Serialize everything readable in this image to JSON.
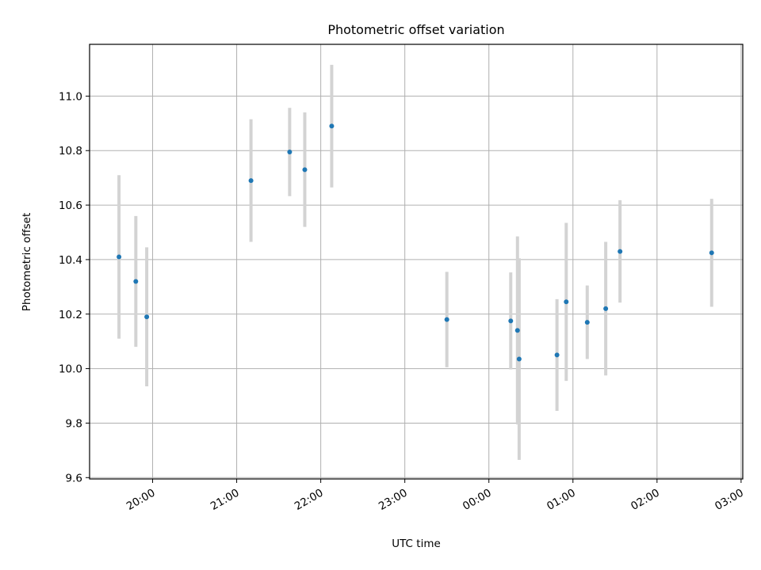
{
  "chart_data": {
    "type": "scatter",
    "title": "Photometric offset variation",
    "xlabel": "UTC time",
    "ylabel": "Photometric offset",
    "x_unit": "hours since 00:00 UTC",
    "xlim": [
      -4.75,
      3.02
    ],
    "ylim": [
      9.595,
      11.19
    ],
    "grid": true,
    "x_ticks": [
      {
        "value": -4,
        "label": "20:00"
      },
      {
        "value": -3,
        "label": "21:00"
      },
      {
        "value": -2,
        "label": "22:00"
      },
      {
        "value": -1,
        "label": "23:00"
      },
      {
        "value": 0,
        "label": "00:00"
      },
      {
        "value": 1,
        "label": "01:00"
      },
      {
        "value": 2,
        "label": "02:00"
      },
      {
        "value": 3,
        "label": "03:00"
      }
    ],
    "y_ticks": [
      {
        "value": 9.6,
        "label": "9.6"
      },
      {
        "value": 9.8,
        "label": "9.8"
      },
      {
        "value": 10.0,
        "label": "10.0"
      },
      {
        "value": 10.2,
        "label": "10.2"
      },
      {
        "value": 10.4,
        "label": "10.4"
      },
      {
        "value": 10.6,
        "label": "10.6"
      },
      {
        "value": 10.8,
        "label": "10.8"
      },
      {
        "value": 11.0,
        "label": "11.0"
      }
    ],
    "series": [
      {
        "marker_color": "#1f77b4",
        "errorbar_color": "#d3d3d3",
        "points": [
          {
            "x": -4.4,
            "y": 10.41,
            "yerr": 0.3
          },
          {
            "x": -4.2,
            "y": 10.32,
            "yerr": 0.24
          },
          {
            "x": -4.07,
            "y": 10.19,
            "yerr": 0.255
          },
          {
            "x": -2.83,
            "y": 10.69,
            "yerr": 0.225
          },
          {
            "x": -2.37,
            "y": 10.795,
            "yerr": 0.162
          },
          {
            "x": -2.19,
            "y": 10.73,
            "yerr": 0.21
          },
          {
            "x": -1.87,
            "y": 10.89,
            "yerr": 0.225
          },
          {
            "x": -0.5,
            "y": 10.18,
            "yerr": 0.175
          },
          {
            "x": 0.26,
            "y": 10.175,
            "yerr": 0.178
          },
          {
            "x": 0.34,
            "y": 10.14,
            "yerr": 0.345
          },
          {
            "x": 0.36,
            "y": 10.035,
            "yerr": 0.37
          },
          {
            "x": 0.81,
            "y": 10.05,
            "yerr": 0.205
          },
          {
            "x": 0.92,
            "y": 10.245,
            "yerr": 0.29
          },
          {
            "x": 1.17,
            "y": 10.17,
            "yerr": 0.135
          },
          {
            "x": 1.39,
            "y": 10.22,
            "yerr": 0.245
          },
          {
            "x": 1.56,
            "y": 10.43,
            "yerr": 0.188
          },
          {
            "x": 2.65,
            "y": 10.425,
            "yerr": 0.198
          }
        ]
      }
    ]
  }
}
